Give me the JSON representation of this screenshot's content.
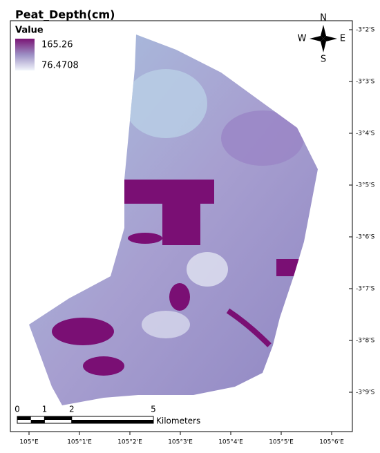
{
  "title": "Peat_Depth(cm)",
  "legend": {
    "label": "Value",
    "max": 165.26,
    "min": 76.4708
  },
  "compass": {
    "n": "N",
    "s": "S",
    "e": "E",
    "w": "W"
  },
  "lat_labels": [
    "-3°2'S",
    "-3°3'S",
    "-3°4'S",
    "-3°5'S",
    "-3°6'S",
    "-3°7'S",
    "-3°8'S",
    "-3°9'S"
  ],
  "lon_labels": [
    "105°E",
    "105°1'E",
    "105°2'E",
    "105°3'E",
    "105°4'E",
    "105°5'E",
    "105°6'E"
  ],
  "scale_bar": {
    "ticks": [
      0,
      1,
      2,
      5
    ],
    "unit": "Kilometers"
  }
}
